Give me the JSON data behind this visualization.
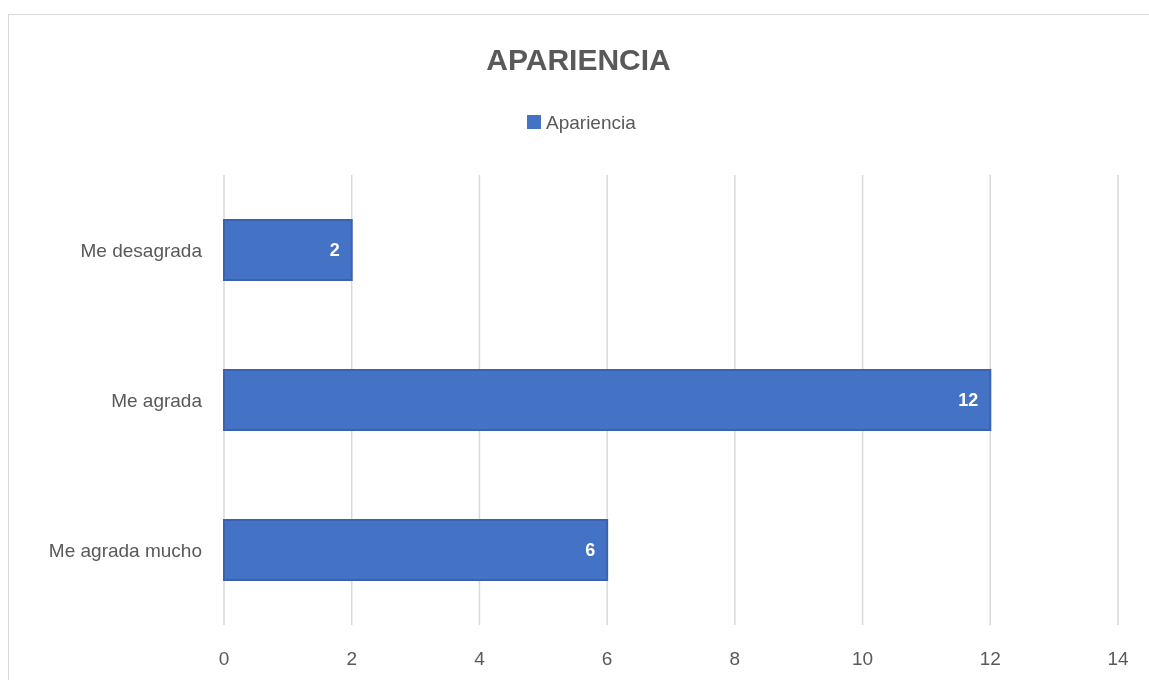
{
  "chart_data": {
    "type": "bar",
    "orientation": "horizontal",
    "title": "APARIENCIA",
    "categories": [
      "Me desagrada",
      "Me agrada",
      "Me agrada mucho"
    ],
    "series": [
      {
        "name": "Apariencia",
        "color": "#4472c4",
        "values": [
          2,
          12,
          6
        ]
      }
    ],
    "xlim": [
      0,
      14
    ],
    "xticks": [
      0,
      2,
      4,
      6,
      8,
      10,
      12,
      14
    ],
    "grid": "x",
    "legend": "top",
    "data_labels": true
  }
}
